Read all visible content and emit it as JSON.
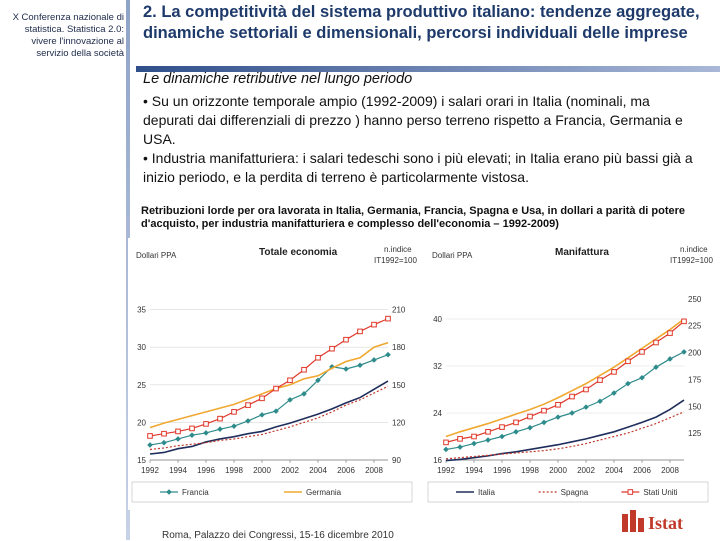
{
  "sidebar": {
    "text": "X Conferenza nazionale di statistica. Statistica 2.0: vivere l'innovazione al servizio della società"
  },
  "slide": {
    "title": "2. La competitività del sistema produttivo italiano: tendenze aggregate, dinamiche settoriali e dimensionali, percorsi individuali delle imprese",
    "subtitle": "Le dinamiche retributive nel lungo periodo",
    "bullet1": "• Su un orizzonte temporale ampio (1992-2009) i salari orari in Italia (nominali, ma depurati dai differenziali di prezzo ) hanno perso terreno rispetto a Francia, Germania e USA.",
    "bullet2": "• Industria manifatturiera: i salari tedeschi sono i più elevati; in Italia erano più bassi già a inizio periodo, e la perdita di terreno è particolarmente vistosa.",
    "caption": "Retribuzioni lorde per ora lavorata in Italia, Germania, Francia, Spagna e Usa, in dollari a parità di potere d'acquisto, per industria manifatturiera e complesso dell'economia – 1992-2009)"
  },
  "footer": {
    "text": "Roma, Palazzo dei Congressi, 15-16 dicembre 2010"
  },
  "logo": {
    "text": "Istat"
  },
  "colors": {
    "italia": "#1f2d5c",
    "spagna": "#c0392b",
    "stati_uniti": "#e0392b",
    "francia": "#2e8b8b",
    "germania": "#f0a830",
    "accent": "#1d3a6b"
  },
  "chart_data": [
    {
      "type": "line",
      "title": "Totale economia",
      "left_axis_label": "Dollari PPA",
      "right_axis_label": "n.indice IT1992=100",
      "x": [
        1992,
        1993,
        1994,
        1995,
        1996,
        1997,
        1998,
        1999,
        2000,
        2001,
        2002,
        2003,
        2004,
        2005,
        2006,
        2007,
        2008,
        2009
      ],
      "x_ticks": [
        "1992",
        "1994",
        "1996",
        "1998",
        "2000",
        "2002",
        "2004",
        "2006",
        "2008"
      ],
      "ylim_left": [
        15,
        40
      ],
      "left_ticks": [
        "15",
        "20",
        "25",
        "30",
        "35"
      ],
      "ylim_right": [
        90,
        240
      ],
      "right_ticks": [
        "90",
        "120",
        "150",
        "180",
        "210"
      ],
      "legend": [
        "Francia",
        "Germania"
      ],
      "series": [
        {
          "name": "Italia",
          "style": "solid",
          "values": [
            15.8,
            16.0,
            16.5,
            16.8,
            17.4,
            17.8,
            18.1,
            18.5,
            18.8,
            19.4,
            19.9,
            20.5,
            21.1,
            21.8,
            22.6,
            23.3,
            24.4,
            25.5
          ]
        },
        {
          "name": "Francia",
          "style": "teal-diamond",
          "values": [
            17.0,
            17.3,
            17.8,
            18.3,
            18.6,
            19.1,
            19.5,
            20.2,
            21.0,
            21.5,
            23.0,
            23.8,
            25.6,
            27.4,
            27.1,
            27.6,
            28.3,
            29.0
          ]
        },
        {
          "name": "Germania",
          "style": "orange-solid",
          "values": [
            19.3,
            19.9,
            20.4,
            20.9,
            21.4,
            21.9,
            22.4,
            23.1,
            23.8,
            24.5,
            25.0,
            25.8,
            26.2,
            27.2,
            28.1,
            28.6,
            30.0,
            30.6
          ]
        },
        {
          "name": "Stati Uniti",
          "style": "red-square",
          "values": [
            18.2,
            18.5,
            18.8,
            19.2,
            19.8,
            20.5,
            21.4,
            22.3,
            23.2,
            24.5,
            25.6,
            27.0,
            28.6,
            29.8,
            31.0,
            32.1,
            33.0,
            33.8
          ]
        },
        {
          "name": "Spagna",
          "style": "red-dotted",
          "values": [
            16.4,
            16.6,
            16.9,
            17.1,
            17.3,
            17.6,
            17.8,
            18.1,
            18.4,
            18.9,
            19.4,
            20.0,
            20.6,
            21.4,
            22.3,
            23.0,
            23.9,
            24.8
          ]
        }
      ]
    },
    {
      "type": "line",
      "title": "Manifattura",
      "left_axis_label": "Dollari PPA",
      "right_axis_label": "n.indice IT1992=100",
      "x": [
        1992,
        1993,
        1994,
        1995,
        1996,
        1997,
        1998,
        1999,
        2000,
        2001,
        2002,
        2003,
        2004,
        2005,
        2006,
        2007,
        2008,
        2009
      ],
      "x_ticks": [
        "1992",
        "1994",
        "1996",
        "1998",
        "2000",
        "2002",
        "2004",
        "2006",
        "2008"
      ],
      "ylim_left": [
        16,
        48
      ],
      "left_ticks": [
        "16",
        "24",
        "32",
        "40"
      ],
      "ylim_right": [
        100,
        275
      ],
      "right_ticks": [
        "125",
        "150",
        "175",
        "200",
        "225",
        "250"
      ],
      "legend": [
        "Italia",
        "Spagna",
        "Stati Uniti"
      ],
      "series": [
        {
          "name": "Italia",
          "style": "solid",
          "values": [
            15.9,
            16.1,
            16.4,
            16.7,
            17.1,
            17.4,
            17.8,
            18.2,
            18.6,
            19.1,
            19.6,
            20.2,
            20.8,
            21.6,
            22.4,
            23.3,
            24.6,
            26.2
          ]
        },
        {
          "name": "Francia",
          "style": "teal-diamond",
          "values": [
            17.8,
            18.2,
            18.8,
            19.4,
            20.0,
            20.8,
            21.5,
            22.4,
            23.3,
            24.0,
            25.0,
            26.0,
            27.4,
            29.0,
            30.0,
            31.8,
            33.2,
            34.4
          ]
        },
        {
          "name": "Germania",
          "style": "orange-solid",
          "values": [
            20.0,
            20.8,
            21.5,
            22.2,
            23.0,
            23.8,
            24.6,
            25.5,
            26.6,
            27.8,
            29.0,
            30.4,
            31.8,
            33.4,
            35.0,
            36.6,
            38.2,
            40.0
          ]
        },
        {
          "name": "Stati Uniti",
          "style": "red-square",
          "values": [
            19.0,
            19.6,
            20.0,
            20.8,
            21.6,
            22.4,
            23.4,
            24.4,
            25.4,
            26.8,
            28.0,
            29.6,
            31.0,
            32.8,
            34.4,
            36.0,
            37.6,
            39.6
          ]
        },
        {
          "name": "Spagna",
          "style": "red-dotted",
          "values": [
            16.2,
            16.4,
            16.6,
            16.8,
            17.0,
            17.2,
            17.4,
            17.6,
            17.9,
            18.3,
            18.8,
            19.4,
            20.0,
            20.6,
            21.4,
            22.2,
            23.2,
            24.2
          ]
        }
      ]
    }
  ]
}
